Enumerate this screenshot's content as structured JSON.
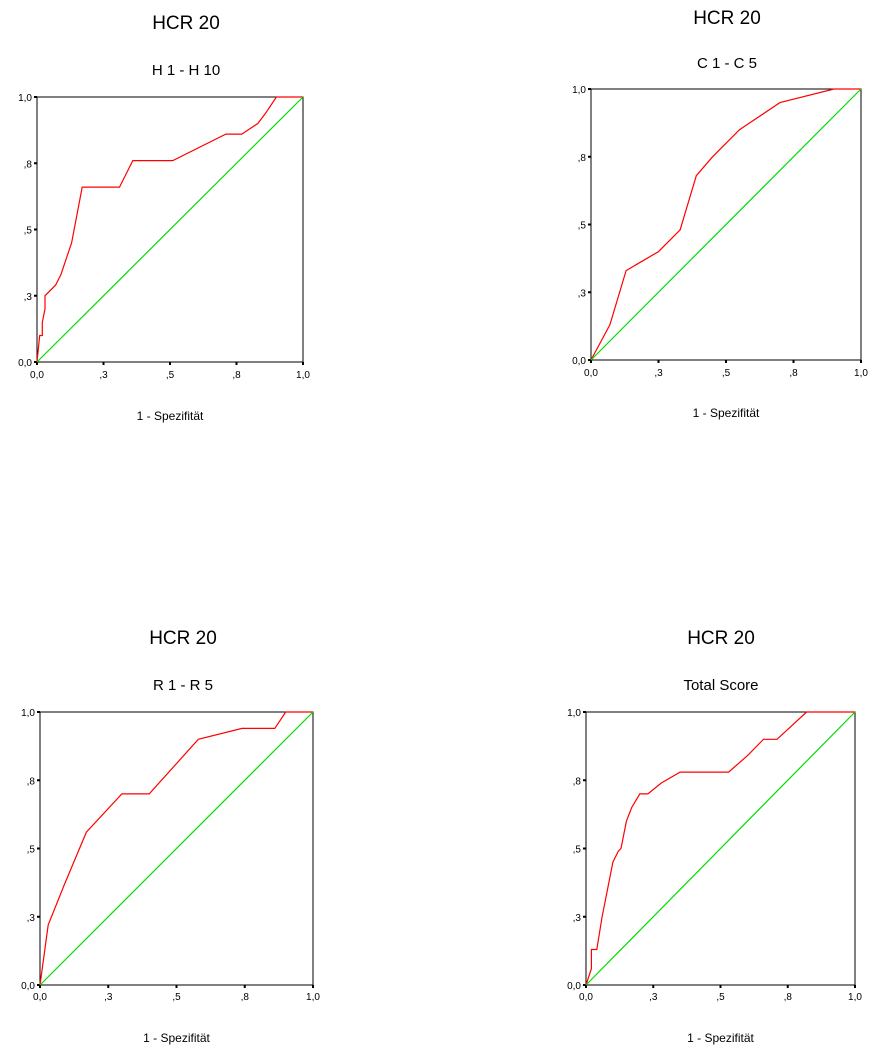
{
  "chart_data": [
    {
      "type": "line",
      "title": "HCR 20",
      "subtitle": "H 1 - H 10",
      "xlabel": "1 - Spezifität",
      "ylabel": "",
      "xlim": [
        0,
        1
      ],
      "ylim": [
        0,
        1
      ],
      "xticks": [
        "0,0",
        ",3",
        ",5",
        ",8",
        "1,0"
      ],
      "yticks": [
        "0,0",
        ",3",
        ",5",
        ",8",
        "1,0"
      ],
      "series": [
        {
          "name": "",
          "color": "#ff0000",
          "x": [
            0,
            0.01,
            0.02,
            0.02,
            0.03,
            0.03,
            0.07,
            0.09,
            0.13,
            0.17,
            0.31,
            0.36,
            0.51,
            0.71,
            0.77,
            0.83,
            0.86,
            0.9,
            1.0
          ],
          "y": [
            0,
            0.1,
            0.1,
            0.15,
            0.2,
            0.25,
            0.29,
            0.33,
            0.45,
            0.66,
            0.66,
            0.76,
            0.76,
            0.86,
            0.86,
            0.9,
            0.94,
            1.0,
            1.0
          ]
        },
        {
          "name": "",
          "color": "#00dd00",
          "x": [
            0,
            1
          ],
          "y": [
            0,
            1
          ]
        }
      ]
    },
    {
      "type": "line",
      "title": "HCR 20",
      "subtitle": "C 1 - C 5",
      "xlabel": "1 - Spezifität",
      "ylabel": "",
      "xlim": [
        0,
        1
      ],
      "ylim": [
        0,
        1
      ],
      "xticks": [
        "0,0",
        ",3",
        ",5",
        ",8",
        "1,0"
      ],
      "yticks": [
        "0,0",
        ",3",
        ",5",
        ",8",
        "1,0"
      ],
      "series": [
        {
          "name": "",
          "color": "#ff0000",
          "x": [
            0,
            0.07,
            0.13,
            0.25,
            0.33,
            0.39,
            0.45,
            0.55,
            0.7,
            0.9,
            1.0
          ],
          "y": [
            0,
            0.13,
            0.33,
            0.4,
            0.48,
            0.68,
            0.75,
            0.85,
            0.95,
            1.0,
            1.0
          ]
        },
        {
          "name": "",
          "color": "#00dd00",
          "x": [
            0,
            1
          ],
          "y": [
            0,
            1
          ]
        }
      ]
    },
    {
      "type": "line",
      "title": "HCR 20",
      "subtitle": "R 1 - R 5",
      "xlabel": "1 - Spezifität",
      "ylabel": "",
      "xlim": [
        0,
        1
      ],
      "ylim": [
        0,
        1
      ],
      "xticks": [
        "0,0",
        ",3",
        ",5",
        ",8",
        "1,0"
      ],
      "yticks": [
        "0,0",
        ",3",
        ",5",
        ",8",
        "1,0"
      ],
      "series": [
        {
          "name": "",
          "color": "#ff0000",
          "x": [
            0,
            0.03,
            0.09,
            0.17,
            0.3,
            0.4,
            0.58,
            0.74,
            0.86,
            0.9,
            1.0
          ],
          "y": [
            0,
            0.22,
            0.37,
            0.56,
            0.7,
            0.7,
            0.9,
            0.94,
            0.94,
            1.0,
            1.0
          ]
        },
        {
          "name": "",
          "color": "#00dd00",
          "x": [
            0,
            1
          ],
          "y": [
            0,
            1
          ]
        }
      ]
    },
    {
      "type": "line",
      "title": "HCR 20",
      "subtitle": "Total Score",
      "xlabel": "1 - Spezifität",
      "ylabel": "",
      "xlim": [
        0,
        1
      ],
      "ylim": [
        0,
        1
      ],
      "xticks": [
        "0,0",
        ",3",
        ",5",
        ",8",
        "1,0"
      ],
      "yticks": [
        "0,0",
        ",3",
        ",5",
        ",8",
        "1,0"
      ],
      "series": [
        {
          "name": "",
          "color": "#ff0000",
          "x": [
            0,
            0.02,
            0.02,
            0.04,
            0.06,
            0.08,
            0.1,
            0.12,
            0.13,
            0.15,
            0.17,
            0.2,
            0.23,
            0.28,
            0.35,
            0.53,
            0.6,
            0.66,
            0.71,
            0.82,
            0.84,
            1.0
          ],
          "y": [
            0,
            0.06,
            0.13,
            0.13,
            0.25,
            0.35,
            0.45,
            0.49,
            0.5,
            0.6,
            0.65,
            0.7,
            0.7,
            0.74,
            0.78,
            0.78,
            0.84,
            0.9,
            0.9,
            1.0,
            1.0,
            1.0
          ]
        },
        {
          "name": "",
          "color": "#00dd00",
          "x": [
            0,
            1
          ],
          "y": [
            0,
            1
          ]
        }
      ]
    }
  ]
}
